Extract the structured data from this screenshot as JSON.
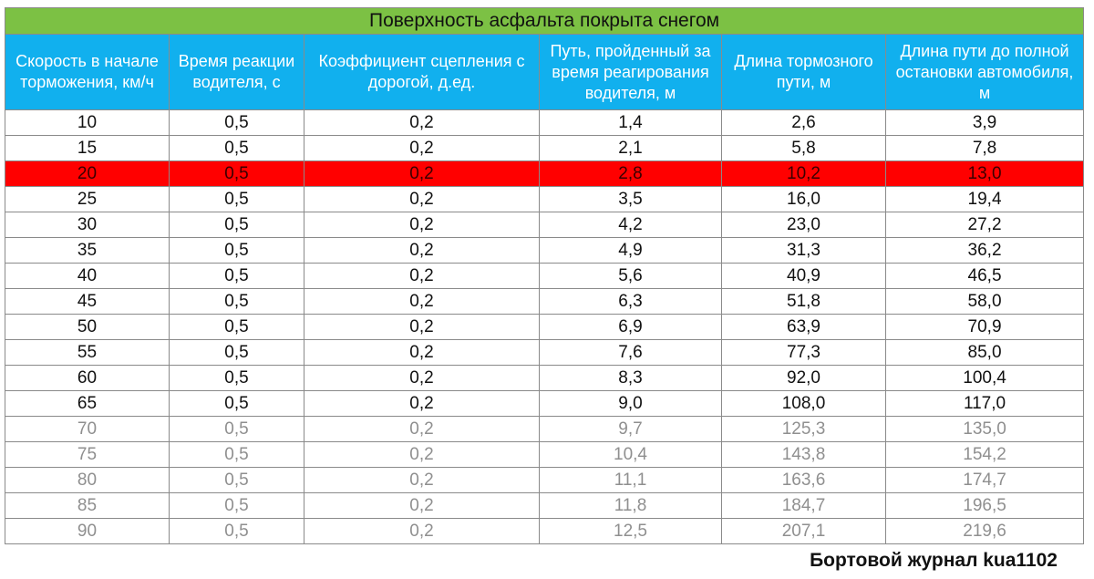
{
  "chart_data": {
    "type": "table",
    "title": "Поверхность асфальта покрыта снегом",
    "columns": [
      "Скорость в начале торможения, км/ч",
      "Время реакции водителя, с",
      "Коэффициент сцепления с дорогой, д.ед.",
      "Путь, пройденный за время реагирования водителя, м",
      "Длина тормозного пути, м",
      "Длина пути до полной остановки автомобиля, м"
    ],
    "rows": [
      [
        "10",
        "0,5",
        "0,2",
        "1,4",
        "2,6",
        "3,9"
      ],
      [
        "15",
        "0,5",
        "0,2",
        "2,1",
        "5,8",
        "7,8"
      ],
      [
        "20",
        "0,5",
        "0,2",
        "2,8",
        "10,2",
        "13,0"
      ],
      [
        "25",
        "0,5",
        "0,2",
        "3,5",
        "16,0",
        "19,4"
      ],
      [
        "30",
        "0,5",
        "0,2",
        "4,2",
        "23,0",
        "27,2"
      ],
      [
        "35",
        "0,5",
        "0,2",
        "4,9",
        "31,3",
        "36,2"
      ],
      [
        "40",
        "0,5",
        "0,2",
        "5,6",
        "40,9",
        "46,5"
      ],
      [
        "45",
        "0,5",
        "0,2",
        "6,3",
        "51,8",
        "58,0"
      ],
      [
        "50",
        "0,5",
        "0,2",
        "6,9",
        "63,9",
        "70,9"
      ],
      [
        "55",
        "0,5",
        "0,2",
        "7,6",
        "77,3",
        "85,0"
      ],
      [
        "60",
        "0,5",
        "0,2",
        "8,3",
        "92,0",
        "100,4"
      ],
      [
        "65",
        "0,5",
        "0,2",
        "9,0",
        "108,0",
        "117,0"
      ],
      [
        "70",
        "0,5",
        "0,2",
        "9,7",
        "125,3",
        "135,0"
      ],
      [
        "75",
        "0,5",
        "0,2",
        "10,4",
        "143,8",
        "154,2"
      ],
      [
        "80",
        "0,5",
        "0,2",
        "11,1",
        "163,6",
        "174,7"
      ],
      [
        "85",
        "0,5",
        "0,2",
        "11,8",
        "184,7",
        "196,5"
      ],
      [
        "90",
        "0,5",
        "0,2",
        "12,5",
        "207,1",
        "219,6"
      ]
    ],
    "highlighted_rows": [
      2
    ],
    "muted_rows": [
      12,
      13,
      14,
      15,
      16
    ]
  },
  "watermark": "Бортовой журнал kua1102",
  "colors": {
    "title_bg": "#7cc144",
    "header_bg": "#11b0ee",
    "header_text": "#ffffff",
    "highlight_row": "#ff0000",
    "muted_text": "#8f8f8f",
    "border": "#8a8a8a"
  }
}
